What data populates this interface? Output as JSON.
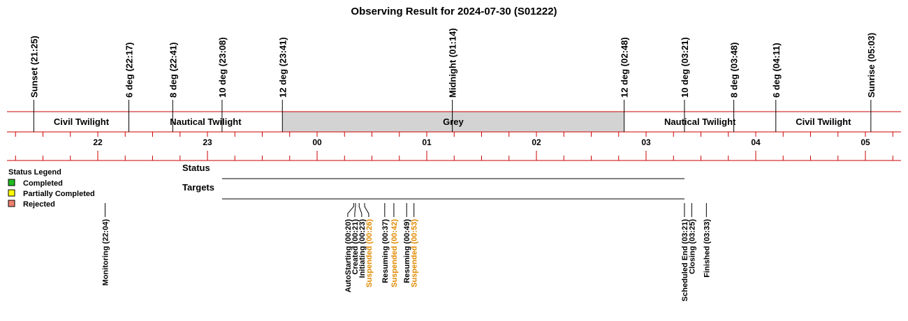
{
  "chart_data": {
    "type": "timeline",
    "title": "Observing Result for 2024-07-30 (S01222)",
    "time_axis": {
      "hour_labels": [
        "22",
        "23",
        "00",
        "01",
        "02",
        "03",
        "04",
        "05"
      ],
      "tick_interval_minutes": 15
    },
    "solar_events": [
      {
        "label": "Sunset (21:25)",
        "time": "21:25"
      },
      {
        "label": "6 deg (22:17)",
        "time": "22:17"
      },
      {
        "label": "8 deg (22:41)",
        "time": "22:41"
      },
      {
        "label": "10 deg (23:08)",
        "time": "23:08"
      },
      {
        "label": "12 deg (23:41)",
        "time": "23:41"
      },
      {
        "label": "Midnight (01:14)",
        "time": "01:14"
      },
      {
        "label": "12 deg (02:48)",
        "time": "02:48"
      },
      {
        "label": "10 deg (03:21)",
        "time": "03:21"
      },
      {
        "label": "8 deg (03:48)",
        "time": "03:48"
      },
      {
        "label": "6 deg (04:11)",
        "time": "04:11"
      },
      {
        "label": "Sunrise (05:03)",
        "time": "05:03"
      }
    ],
    "twilight_bands": [
      {
        "label": "Civil Twilight",
        "start": "21:25",
        "end": "22:17",
        "fill": "#ffffff"
      },
      {
        "label": "Nautical Twilight",
        "start": "22:17",
        "end": "23:41",
        "fill": "#ffffff"
      },
      {
        "label": "Grey",
        "start": "23:41",
        "end": "02:48",
        "fill": "#d3d3d3"
      },
      {
        "label": "Nautical Twilight",
        "start": "02:48",
        "end": "04:11",
        "fill": "#ffffff"
      },
      {
        "label": "Civil Twilight",
        "start": "04:11",
        "end": "05:03",
        "fill": "#ffffff"
      }
    ],
    "legend": {
      "title": "Status Legend",
      "items": [
        {
          "label": "Completed",
          "color": "#22bb22"
        },
        {
          "label": "Partially Completed",
          "color": "#ffff00"
        },
        {
          "label": "Rejected",
          "color": "#f08070"
        }
      ]
    },
    "rows": [
      {
        "label": "Status",
        "start": "23:08",
        "end": "03:21"
      },
      {
        "label": "Targets",
        "start": "23:08",
        "end": "03:21"
      }
    ],
    "events": [
      {
        "label": "Monitoring (22:04)",
        "time": "22:04",
        "color": "#000000"
      },
      {
        "label": "AutoStarting (00:20)",
        "time": "00:20",
        "color": "#000000"
      },
      {
        "label": "Created (00:21)",
        "time": "00:21",
        "color": "#000000"
      },
      {
        "label": "Initiating (00:23)",
        "time": "00:23",
        "color": "#000000"
      },
      {
        "label": "Suspended (00:26)",
        "time": "00:26",
        "color": "#e08a00"
      },
      {
        "label": "Resuming (00:37)",
        "time": "00:37",
        "color": "#000000"
      },
      {
        "label": "Suspended (00:42)",
        "time": "00:42",
        "color": "#e08a00"
      },
      {
        "label": "Resuming (00:49)",
        "time": "00:49",
        "color": "#000000"
      },
      {
        "label": "Suspended (00:53)",
        "time": "00:53",
        "color": "#e08a00"
      },
      {
        "label": "Scheduled End (03:21)",
        "time": "03:21",
        "color": "#000000"
      },
      {
        "label": "Closing (03:25)",
        "time": "03:25",
        "color": "#000000"
      },
      {
        "label": "Finished (03:33)",
        "time": "03:33",
        "color": "#000000"
      }
    ],
    "colors": {
      "axis": "#cc0000",
      "grey_band": "#d3d3d3",
      "suspended": "#e08a00"
    }
  }
}
